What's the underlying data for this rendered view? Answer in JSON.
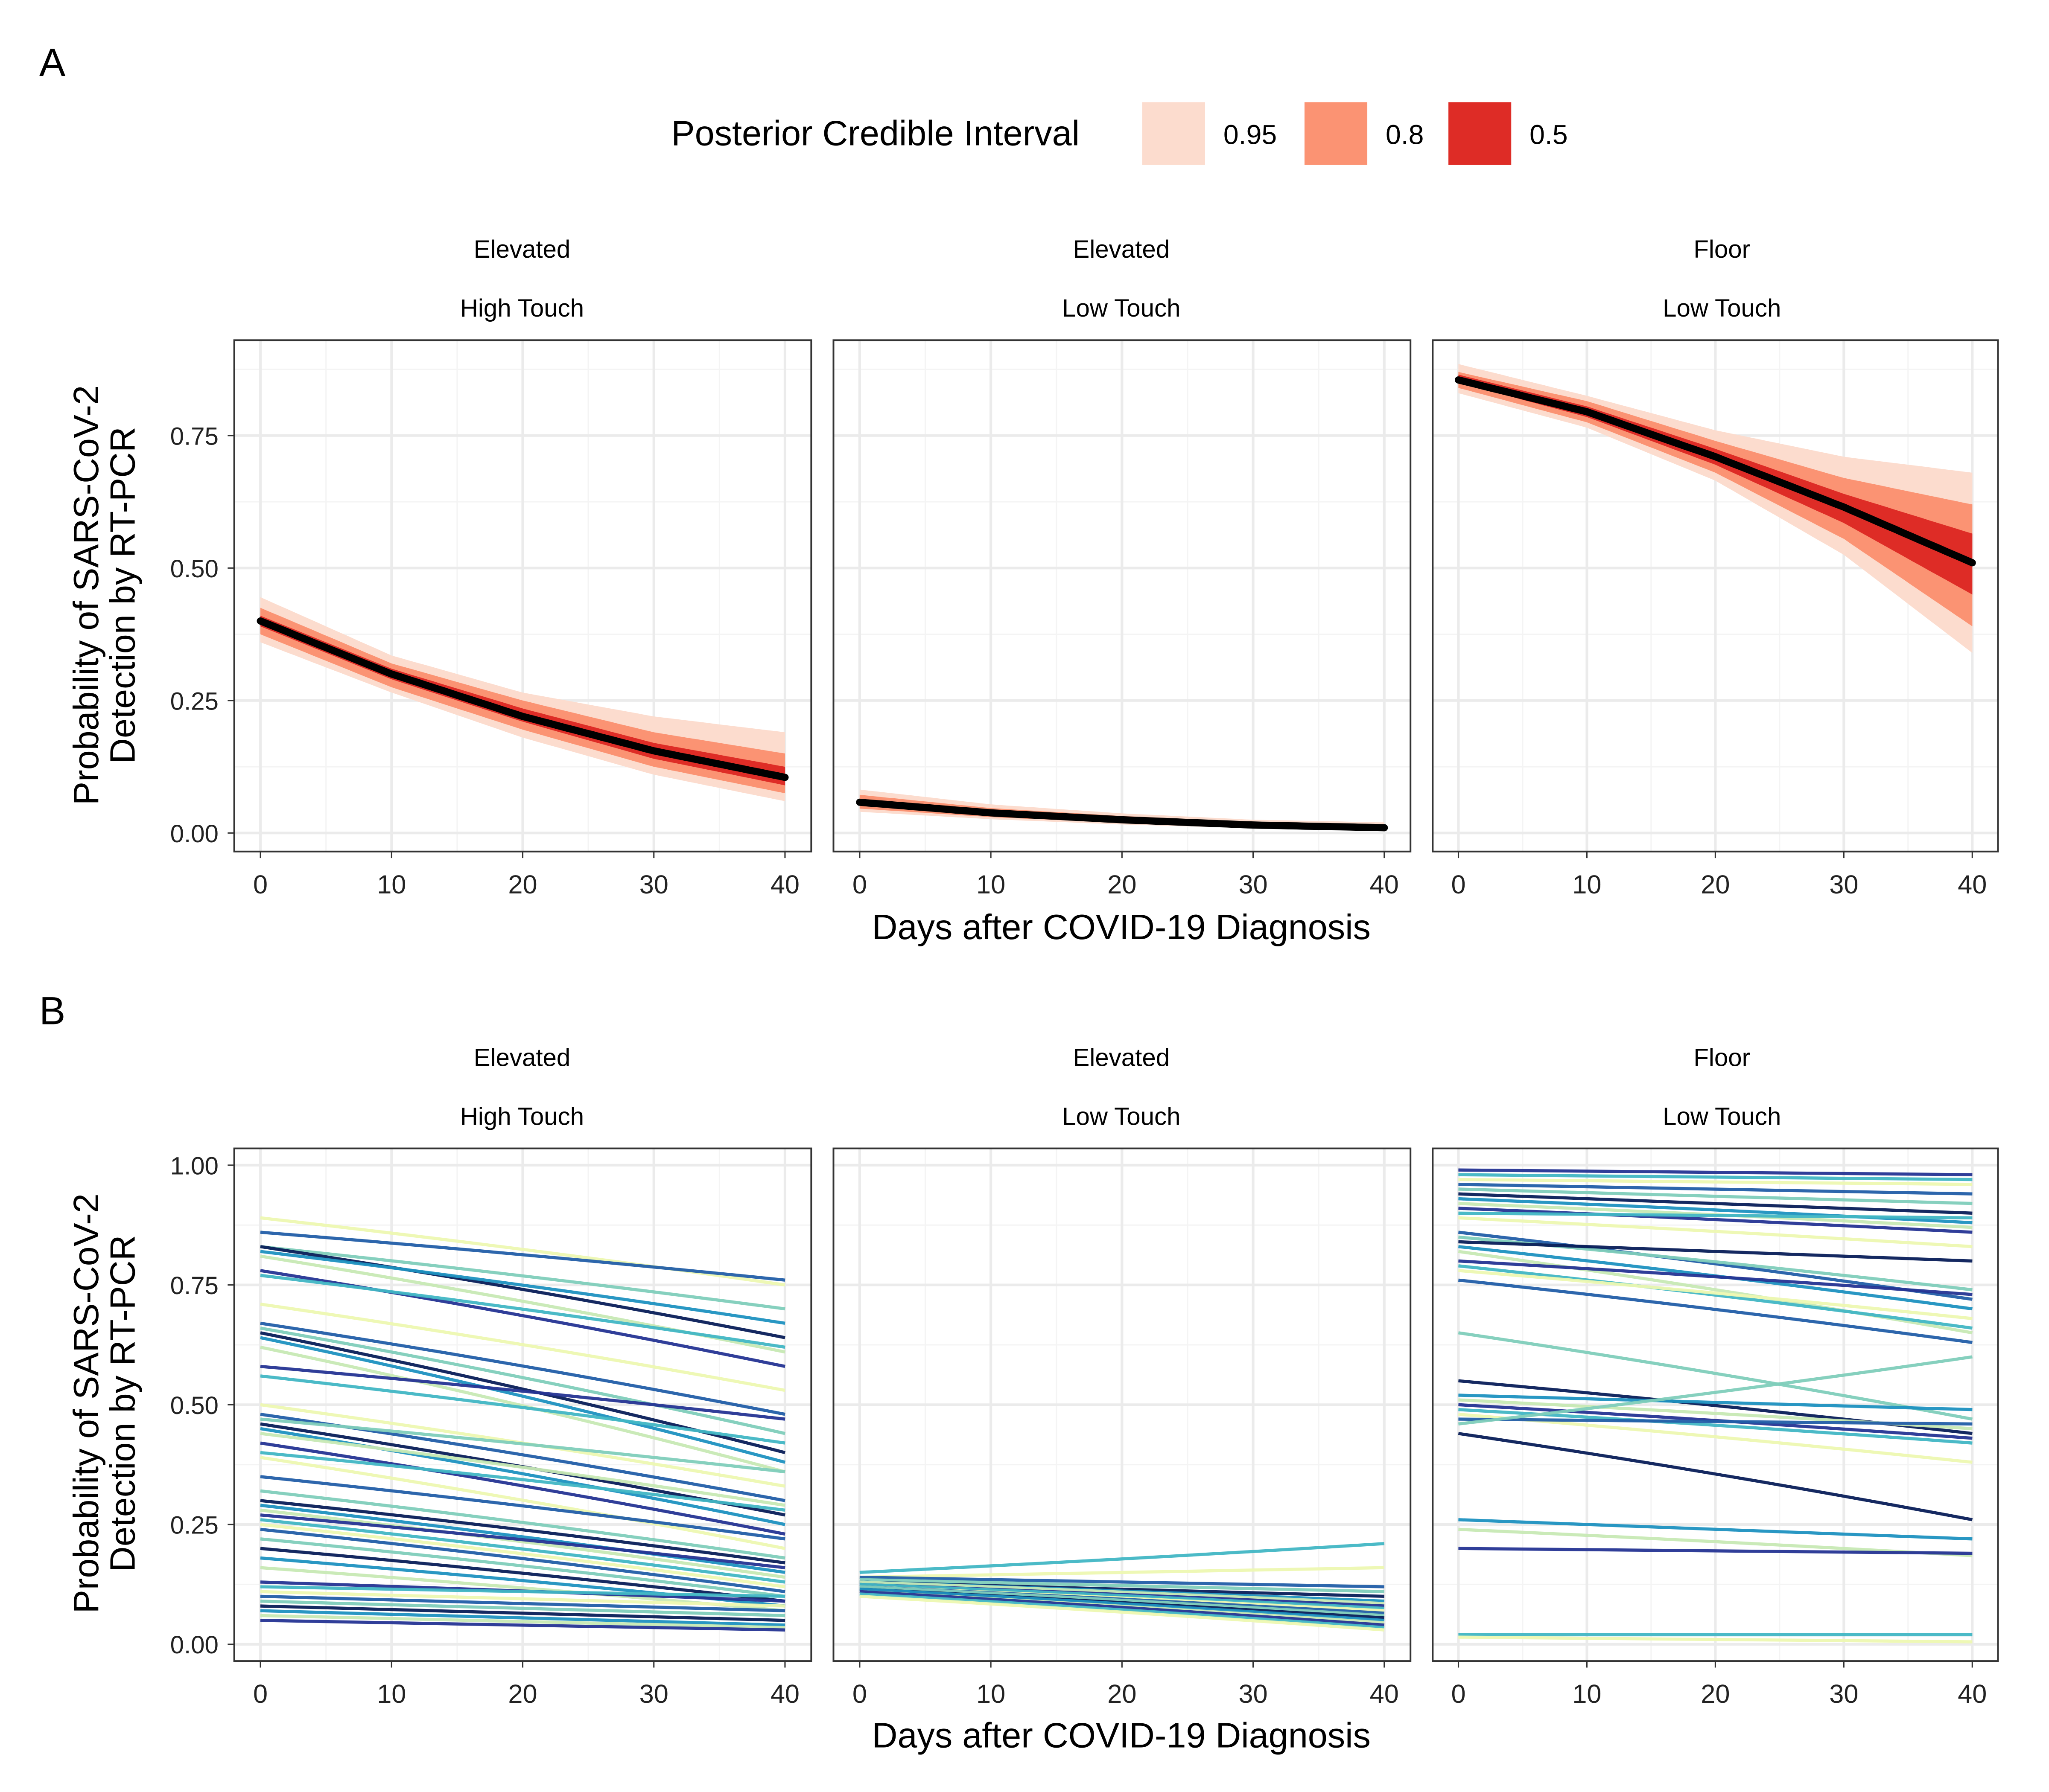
{
  "figure": {
    "panel_labels": [
      "A",
      "B"
    ],
    "legend": {
      "title": "Posterior Credible Interval",
      "entries": [
        {
          "label": "0.95",
          "color": "#fcdcce"
        },
        {
          "label": "0.8",
          "color": "#fb9373"
        },
        {
          "label": "0.5",
          "color": "#de2c26"
        }
      ]
    },
    "facets": [
      {
        "line1": "Elevated",
        "line2": "High Touch"
      },
      {
        "line1": "Elevated",
        "line2": "Low Touch"
      },
      {
        "line1": "Floor",
        "line2": "Low Touch"
      }
    ],
    "xlabel": "Days after COVID-19 Diagnosis",
    "ylabel_line1": "Probability of SARS-CoV-2",
    "ylabel_line2": "Detection by RT-PCR",
    "colors": {
      "median_line": "#000000",
      "panel_border": "#333333",
      "grid_major": "#ebebeb",
      "grid_minor": "#f4f4f4"
    },
    "spaghetti_palette": [
      "#edf8b1",
      "#c7e9b4",
      "#7fcdbb",
      "#41b6c4",
      "#1d91c0",
      "#225ea8",
      "#253494",
      "#081d58"
    ]
  },
  "chart_data": [
    {
      "type": "area",
      "panel": "A",
      "xlabel": "Days after COVID-19 Diagnosis",
      "ylabel": "Probability of SARS-CoV-2 Detection by RT-PCR",
      "xlim": [
        -2,
        42
      ],
      "ylim": [
        -0.035,
        0.93
      ],
      "xticks": [
        0,
        10,
        20,
        30,
        40
      ],
      "yticks": [
        0,
        0.25,
        0.5,
        0.75
      ],
      "ytick_labels": [
        "0.00",
        "0.25",
        "0.50",
        "0.75"
      ],
      "facets": [
        {
          "name": "Elevated / High Touch",
          "x": [
            0,
            10,
            20,
            30,
            40
          ],
          "median": [
            0.4,
            0.3,
            0.22,
            0.155,
            0.105
          ],
          "ci50": {
            "lo": [
              0.39,
              0.29,
              0.21,
              0.14,
              0.09
            ],
            "hi": [
              0.41,
              0.31,
              0.235,
              0.17,
              0.125
            ]
          },
          "ci80": {
            "lo": [
              0.375,
              0.275,
              0.195,
              0.125,
              0.075
            ],
            "hi": [
              0.425,
              0.32,
              0.25,
              0.19,
              0.15
            ]
          },
          "ci95": {
            "lo": [
              0.36,
              0.265,
              0.18,
              0.11,
              0.06
            ],
            "hi": [
              0.445,
              0.335,
              0.265,
              0.22,
              0.19
            ]
          }
        },
        {
          "name": "Elevated / Low Touch",
          "x": [
            0,
            10,
            20,
            30,
            40
          ],
          "median": [
            0.058,
            0.038,
            0.025,
            0.015,
            0.01
          ],
          "ci50": {
            "lo": [
              0.052,
              0.034,
              0.022,
              0.013,
              0.008
            ],
            "hi": [
              0.064,
              0.042,
              0.028,
              0.018,
              0.012
            ]
          },
          "ci80": {
            "lo": [
              0.046,
              0.03,
              0.019,
              0.011,
              0.006
            ],
            "hi": [
              0.072,
              0.047,
              0.032,
              0.021,
              0.015
            ]
          },
          "ci95": {
            "lo": [
              0.04,
              0.026,
              0.016,
              0.009,
              0.004
            ],
            "hi": [
              0.082,
              0.054,
              0.037,
              0.025,
              0.02
            ]
          }
        },
        {
          "name": "Floor / Low Touch",
          "x": [
            0,
            10,
            20,
            30,
            40
          ],
          "median": [
            0.855,
            0.795,
            0.71,
            0.615,
            0.51
          ],
          "ci50": {
            "lo": [
              0.85,
              0.785,
              0.695,
              0.585,
              0.45
            ],
            "hi": [
              0.865,
              0.805,
              0.725,
              0.64,
              0.565
            ]
          },
          "ci80": {
            "lo": [
              0.84,
              0.775,
              0.68,
              0.555,
              0.39
            ],
            "hi": [
              0.87,
              0.815,
              0.74,
              0.67,
              0.62
            ]
          },
          "ci95": {
            "lo": [
              0.83,
              0.765,
              0.665,
              0.525,
              0.34
            ],
            "hi": [
              0.885,
              0.825,
              0.76,
              0.71,
              0.68
            ]
          }
        }
      ]
    },
    {
      "type": "line",
      "panel": "B",
      "xlabel": "Days after COVID-19 Diagnosis",
      "ylabel": "Probability of SARS-CoV-2 Detection by RT-PCR",
      "xlim": [
        -2,
        42
      ],
      "ylim": [
        -0.035,
        1.035
      ],
      "xticks": [
        0,
        10,
        20,
        30,
        40
      ],
      "yticks": [
        0,
        0.25,
        0.5,
        0.75,
        1.0
      ],
      "ytick_labels": [
        "0.00",
        "0.25",
        "0.50",
        "0.75",
        "1.00"
      ],
      "facets": [
        {
          "name": "Elevated / High Touch",
          "x": [
            0,
            40
          ],
          "series_start_end": [
            [
              0.89,
              0.75
            ],
            [
              0.86,
              0.76
            ],
            [
              0.83,
              0.7
            ],
            [
              0.83,
              0.64
            ],
            [
              0.82,
              0.67
            ],
            [
              0.81,
              0.61
            ],
            [
              0.78,
              0.58
            ],
            [
              0.77,
              0.62
            ],
            [
              0.71,
              0.53
            ],
            [
              0.67,
              0.48
            ],
            [
              0.66,
              0.44
            ],
            [
              0.65,
              0.4
            ],
            [
              0.64,
              0.38
            ],
            [
              0.62,
              0.36
            ],
            [
              0.58,
              0.47
            ],
            [
              0.56,
              0.42
            ],
            [
              0.5,
              0.33
            ],
            [
              0.48,
              0.3
            ],
            [
              0.47,
              0.36
            ],
            [
              0.46,
              0.27
            ],
            [
              0.45,
              0.25
            ],
            [
              0.44,
              0.29
            ],
            [
              0.42,
              0.23
            ],
            [
              0.4,
              0.28
            ],
            [
              0.39,
              0.2
            ],
            [
              0.35,
              0.22
            ],
            [
              0.32,
              0.18
            ],
            [
              0.3,
              0.17
            ],
            [
              0.29,
              0.15
            ],
            [
              0.28,
              0.14
            ],
            [
              0.27,
              0.16
            ],
            [
              0.26,
              0.13
            ],
            [
              0.25,
              0.12
            ],
            [
              0.24,
              0.11
            ],
            [
              0.22,
              0.1
            ],
            [
              0.2,
              0.09
            ],
            [
              0.18,
              0.08
            ],
            [
              0.16,
              0.07
            ],
            [
              0.13,
              0.09
            ],
            [
              0.12,
              0.1
            ],
            [
              0.11,
              0.08
            ],
            [
              0.1,
              0.07
            ],
            [
              0.09,
              0.06
            ],
            [
              0.08,
              0.05
            ],
            [
              0.07,
              0.04
            ],
            [
              0.06,
              0.035
            ],
            [
              0.05,
              0.03
            ]
          ]
        },
        {
          "name": "Elevated / Low Touch",
          "x": [
            0,
            40
          ],
          "series_start_end": [
            [
              0.15,
              0.21
            ],
            [
              0.14,
              0.16
            ],
            [
              0.14,
              0.12
            ],
            [
              0.135,
              0.11
            ],
            [
              0.13,
              0.1
            ],
            [
              0.13,
              0.09
            ],
            [
              0.13,
              0.085
            ],
            [
              0.125,
              0.08
            ],
            [
              0.125,
              0.075
            ],
            [
              0.12,
              0.07
            ],
            [
              0.12,
              0.065
            ],
            [
              0.12,
              0.06
            ],
            [
              0.115,
              0.055
            ],
            [
              0.115,
              0.05
            ],
            [
              0.11,
              0.045
            ],
            [
              0.11,
              0.04
            ],
            [
              0.105,
              0.035
            ],
            [
              0.1,
              0.03
            ]
          ]
        },
        {
          "name": "Floor / Low Touch",
          "x": [
            0,
            40
          ],
          "series_start_end": [
            [
              0.99,
              0.98
            ],
            [
              0.98,
              0.97
            ],
            [
              0.97,
              0.96
            ],
            [
              0.96,
              0.94
            ],
            [
              0.95,
              0.92
            ],
            [
              0.94,
              0.9
            ],
            [
              0.93,
              0.88
            ],
            [
              0.92,
              0.87
            ],
            [
              0.91,
              0.86
            ],
            [
              0.9,
              0.89
            ],
            [
              0.89,
              0.83
            ],
            [
              0.86,
              0.72
            ],
            [
              0.85,
              0.74
            ],
            [
              0.84,
              0.8
            ],
            [
              0.83,
              0.7
            ],
            [
              0.82,
              0.65
            ],
            [
              0.8,
              0.73
            ],
            [
              0.79,
              0.66
            ],
            [
              0.78,
              0.68
            ],
            [
              0.76,
              0.63
            ],
            [
              0.65,
              0.47
            ],
            [
              0.55,
              0.44
            ],
            [
              0.52,
              0.49
            ],
            [
              0.51,
              0.45
            ],
            [
              0.5,
              0.43
            ],
            [
              0.49,
              0.42
            ],
            [
              0.48,
              0.38
            ],
            [
              0.47,
              0.46
            ],
            [
              0.46,
              0.6
            ],
            [
              0.44,
              0.26
            ],
            [
              0.26,
              0.22
            ],
            [
              0.24,
              0.185
            ],
            [
              0.2,
              0.19
            ],
            [
              0.02,
              0.02
            ],
            [
              0.015,
              0.005
            ]
          ]
        }
      ]
    }
  ]
}
